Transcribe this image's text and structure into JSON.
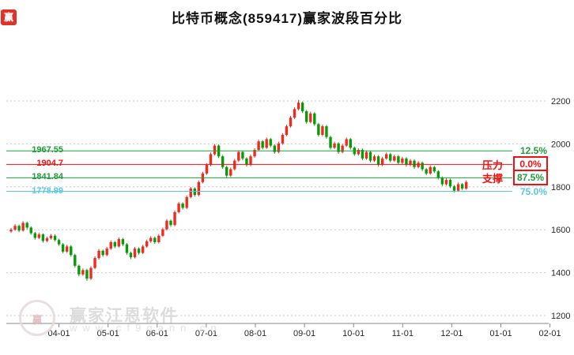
{
  "window": {
    "title": "比特币概念(859417)赢家波段百分比"
  },
  "logo_badge": {
    "text": "赢"
  },
  "annotations": {
    "pressure": "压力",
    "support": "支撑",
    "color": "#f21111"
  },
  "levels": [
    {
      "id": "band-12-5",
      "value": "1967.55",
      "price": 1967.55,
      "pct": "12.5%",
      "color": "#1f9d3a",
      "pct_color": "#1f9d3a",
      "pct_boxed": false
    },
    {
      "id": "band-0-0",
      "value": "1904.7",
      "price": 1904.7,
      "pct": "0.0%",
      "color": "#f21111",
      "pct_color": "#f21111",
      "pct_boxed": true
    },
    {
      "id": "band-87-5",
      "value": "1841.84",
      "price": 1841.84,
      "pct": "87.5%",
      "color": "#1f9d3a",
      "pct_color": "#1f9d3a",
      "pct_boxed": true
    },
    {
      "id": "band-75-0",
      "value": "1778.99",
      "price": 1778.99,
      "pct": "75.0%",
      "color": "#56c8e8",
      "pct_color": "#56c8e8",
      "pct_boxed": false
    }
  ],
  "axes": {
    "y_ticks": [
      2200,
      2000,
      1800,
      1600,
      1400,
      1200
    ],
    "x_ticks": [
      "04-01",
      "05-01",
      "06-01",
      "07-01",
      "08-01",
      "09-01",
      "10-01",
      "11-01",
      "12-01",
      "01-01",
      "02-01"
    ]
  },
  "colors": {
    "up": "#ee2a21",
    "down": "#079b07",
    "grid": "#c9c9c9",
    "axis_line": "#8a8a8a",
    "axis_text": "#2a2a2a"
  },
  "watermark": {
    "brand": "赢家江恩软件",
    "url": "www.cf9gann.cn"
  },
  "chart_data": {
    "type": "candlestick",
    "title": "比特币概念(859417)赢家波段百分比",
    "x_tick_labels": [
      "04-01",
      "05-01",
      "06-01",
      "07-01",
      "08-01",
      "09-01",
      "10-01",
      "11-01",
      "12-01",
      "01-01",
      "02-01"
    ],
    "y_ticks": [
      2200,
      2000,
      1800,
      1600,
      1400,
      1200
    ],
    "ylim": [
      1200,
      2250
    ],
    "legend": "none",
    "grid": "horizontal-dotted",
    "band_levels": [
      {
        "price": 1967.55,
        "percent": 12.5,
        "role": "band"
      },
      {
        "price": 1904.7,
        "percent": 0.0,
        "role": "pressure"
      },
      {
        "price": 1841.84,
        "percent": 87.5,
        "role": "support"
      },
      {
        "price": 1778.99,
        "percent": 75.0,
        "role": "band"
      }
    ],
    "candles_ohlc": [
      [
        1592,
        1608,
        1585,
        1600
      ],
      [
        1600,
        1626,
        1595,
        1618
      ],
      [
        1618,
        1624,
        1589,
        1596
      ],
      [
        1596,
        1640,
        1591,
        1632
      ],
      [
        1632,
        1638,
        1602,
        1610
      ],
      [
        1610,
        1616,
        1577,
        1584
      ],
      [
        1584,
        1590,
        1554,
        1562
      ],
      [
        1562,
        1586,
        1556,
        1578
      ],
      [
        1578,
        1583,
        1540,
        1548
      ],
      [
        1548,
        1568,
        1542,
        1560
      ],
      [
        1560,
        1580,
        1554,
        1572
      ],
      [
        1572,
        1578,
        1545,
        1552
      ],
      [
        1552,
        1558,
        1525,
        1532
      ],
      [
        1532,
        1538,
        1490,
        1498
      ],
      [
        1498,
        1530,
        1492,
        1522
      ],
      [
        1522,
        1528,
        1474,
        1482
      ],
      [
        1482,
        1488,
        1424,
        1432
      ],
      [
        1432,
        1438,
        1383,
        1392
      ],
      [
        1392,
        1420,
        1385,
        1412
      ],
      [
        1412,
        1418,
        1362,
        1372
      ],
      [
        1372,
        1430,
        1366,
        1422
      ],
      [
        1422,
        1476,
        1416,
        1468
      ],
      [
        1468,
        1510,
        1461,
        1502
      ],
      [
        1502,
        1508,
        1474,
        1482
      ],
      [
        1482,
        1520,
        1476,
        1512
      ],
      [
        1512,
        1550,
        1506,
        1542
      ],
      [
        1542,
        1548,
        1514,
        1522
      ],
      [
        1522,
        1564,
        1517,
        1556
      ],
      [
        1556,
        1562,
        1524,
        1532
      ],
      [
        1532,
        1538,
        1484,
        1492
      ],
      [
        1492,
        1498,
        1463,
        1472
      ],
      [
        1472,
        1520,
        1466,
        1512
      ],
      [
        1512,
        1518,
        1484,
        1492
      ],
      [
        1492,
        1530,
        1486,
        1522
      ],
      [
        1522,
        1554,
        1516,
        1546
      ],
      [
        1546,
        1570,
        1539,
        1562
      ],
      [
        1562,
        1568,
        1534,
        1542
      ],
      [
        1542,
        1580,
        1536,
        1572
      ],
      [
        1572,
        1610,
        1566,
        1602
      ],
      [
        1602,
        1650,
        1596,
        1642
      ],
      [
        1642,
        1648,
        1614,
        1622
      ],
      [
        1622,
        1690,
        1616,
        1682
      ],
      [
        1682,
        1730,
        1676,
        1722
      ],
      [
        1722,
        1728,
        1694,
        1702
      ],
      [
        1702,
        1760,
        1696,
        1752
      ],
      [
        1752,
        1800,
        1746,
        1792
      ],
      [
        1792,
        1798,
        1754,
        1762
      ],
      [
        1762,
        1830,
        1756,
        1822
      ],
      [
        1822,
        1870,
        1816,
        1862
      ],
      [
        1862,
        1910,
        1856,
        1902
      ],
      [
        1902,
        1960,
        1896,
        1952
      ],
      [
        1952,
        2000,
        1946,
        1992
      ],
      [
        1992,
        1998,
        1934,
        1942
      ],
      [
        1942,
        1948,
        1884,
        1892
      ],
      [
        1892,
        1898,
        1844,
        1852
      ],
      [
        1852,
        1890,
        1846,
        1882
      ],
      [
        1882,
        1930,
        1876,
        1922
      ],
      [
        1922,
        1970,
        1916,
        1962
      ],
      [
        1962,
        1968,
        1924,
        1932
      ],
      [
        1932,
        1938,
        1894,
        1902
      ],
      [
        1902,
        1950,
        1896,
        1942
      ],
      [
        1942,
        1980,
        1936,
        1972
      ],
      [
        1972,
        2020,
        1966,
        2012
      ],
      [
        2012,
        2018,
        1974,
        1982
      ],
      [
        1982,
        2030,
        1976,
        2022
      ],
      [
        2022,
        2028,
        1984,
        1992
      ],
      [
        1992,
        1998,
        1954,
        1962
      ],
      [
        1962,
        2010,
        1956,
        2002
      ],
      [
        2002,
        2050,
        1996,
        2042
      ],
      [
        2042,
        2090,
        2036,
        2082
      ],
      [
        2082,
        2130,
        2076,
        2122
      ],
      [
        2122,
        2170,
        2116,
        2162
      ],
      [
        2162,
        2205,
        2156,
        2192
      ],
      [
        2192,
        2198,
        2144,
        2152
      ],
      [
        2152,
        2158,
        2094,
        2102
      ],
      [
        2102,
        2150,
        2096,
        2142
      ],
      [
        2142,
        2148,
        2084,
        2092
      ],
      [
        2092,
        2098,
        2034,
        2042
      ],
      [
        2042,
        2090,
        2036,
        2082
      ],
      [
        2082,
        2088,
        2024,
        2032
      ],
      [
        2032,
        2038,
        1974,
        1982
      ],
      [
        1982,
        2010,
        1976,
        2002
      ],
      [
        2002,
        2008,
        1954,
        1962
      ],
      [
        1962,
        2000,
        1956,
        1992
      ],
      [
        1992,
        2030,
        1986,
        2022
      ],
      [
        2022,
        2028,
        1974,
        1982
      ],
      [
        1982,
        1988,
        1944,
        1952
      ],
      [
        1952,
        1980,
        1946,
        1972
      ],
      [
        1972,
        1978,
        1924,
        1932
      ],
      [
        1932,
        1970,
        1926,
        1962
      ],
      [
        1962,
        1968,
        1914,
        1922
      ],
      [
        1922,
        1950,
        1916,
        1942
      ],
      [
        1942,
        1948,
        1894,
        1902
      ],
      [
        1902,
        1940,
        1896,
        1932
      ],
      [
        1932,
        1960,
        1926,
        1952
      ],
      [
        1952,
        1958,
        1914,
        1922
      ],
      [
        1922,
        1950,
        1916,
        1942
      ],
      [
        1942,
        1948,
        1904,
        1912
      ],
      [
        1912,
        1940,
        1906,
        1932
      ],
      [
        1932,
        1938,
        1894,
        1902
      ],
      [
        1902,
        1930,
        1896,
        1922
      ],
      [
        1922,
        1928,
        1884,
        1892
      ],
      [
        1892,
        1920,
        1886,
        1912
      ],
      [
        1912,
        1918,
        1874,
        1882
      ],
      [
        1882,
        1888,
        1854,
        1862
      ],
      [
        1862,
        1900,
        1856,
        1892
      ],
      [
        1892,
        1898,
        1864,
        1872
      ],
      [
        1872,
        1878,
        1834,
        1842
      ],
      [
        1842,
        1848,
        1804,
        1812
      ],
      [
        1812,
        1840,
        1806,
        1832
      ],
      [
        1832,
        1838,
        1794,
        1802
      ],
      [
        1802,
        1808,
        1774,
        1782
      ],
      [
        1782,
        1820,
        1776,
        1812
      ],
      [
        1812,
        1818,
        1784,
        1792
      ],
      [
        1792,
        1830,
        1786,
        1822
      ]
    ]
  }
}
